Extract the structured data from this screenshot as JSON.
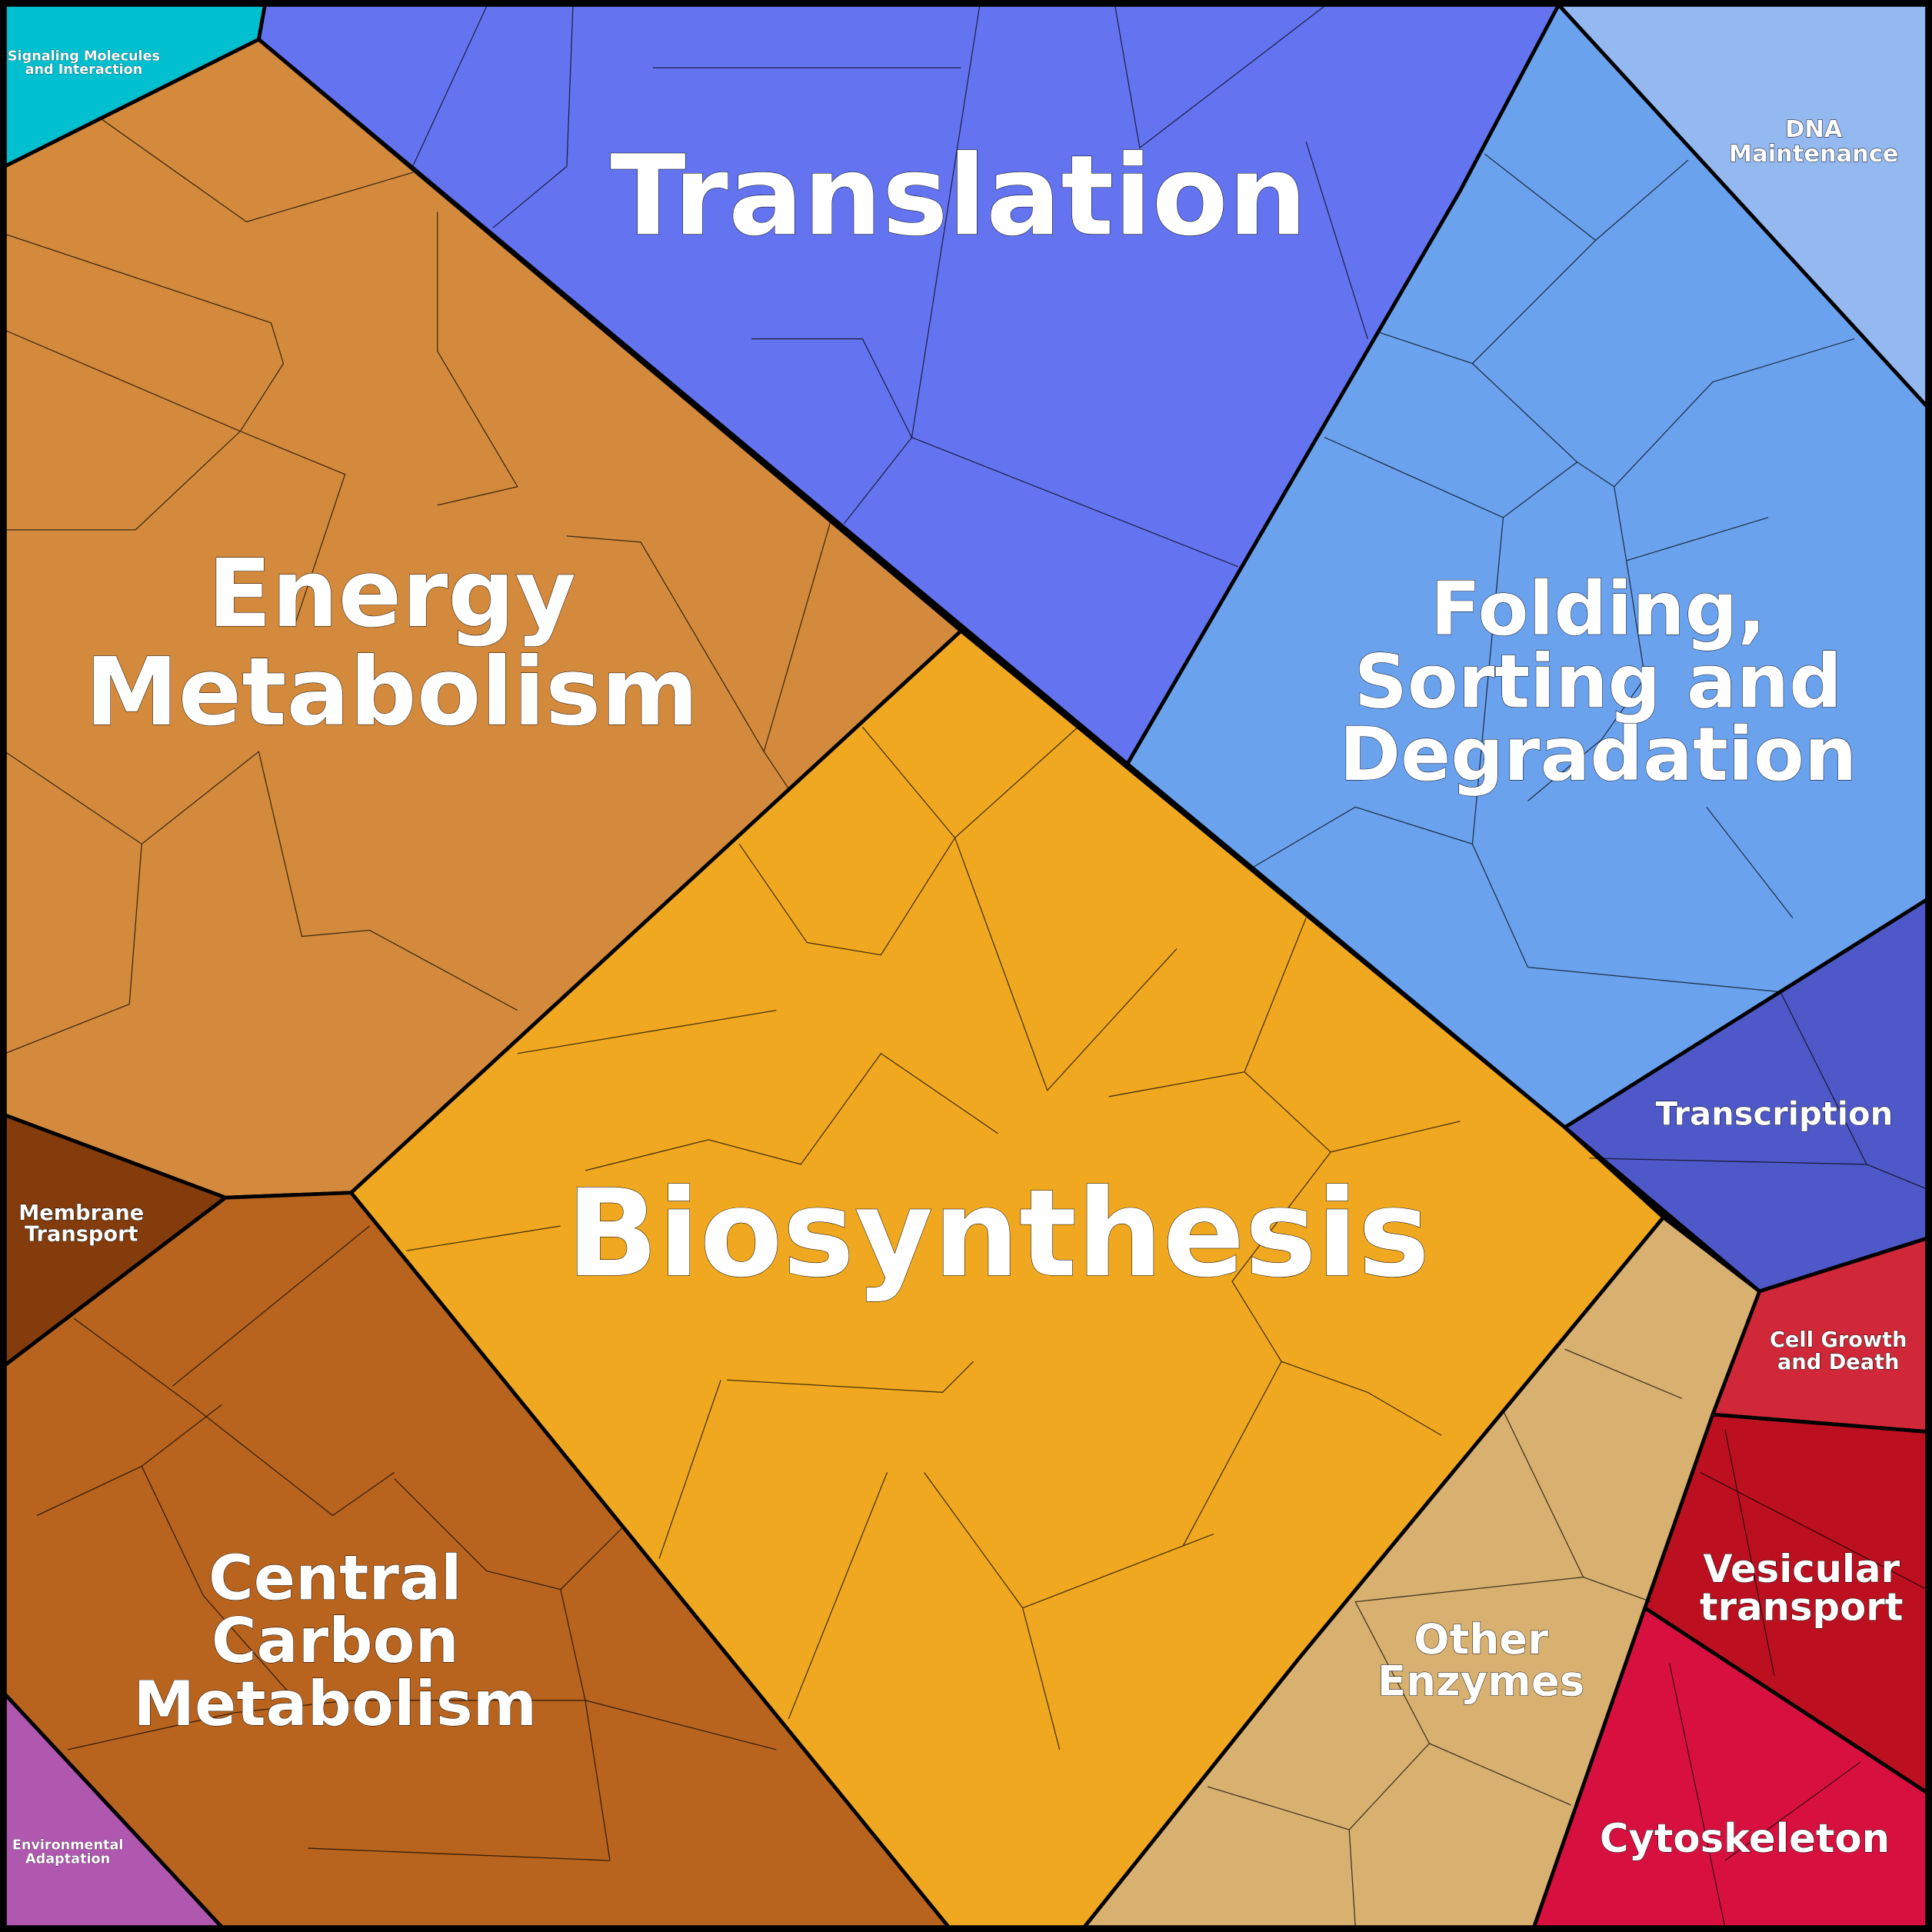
{
  "regions": [
    {
      "label": [
        "Translation"
      ]
    },
    {
      "label": [
        "Energy",
        "Metabolism"
      ]
    },
    {
      "label": [
        "Biosynthesis"
      ]
    },
    {
      "label": [
        "Folding,",
        "Sorting and",
        "Degradation"
      ]
    },
    {
      "label": [
        "Central",
        "Carbon",
        "Metabolism"
      ]
    },
    {
      "label": [
        "Other",
        "Enzymes"
      ]
    },
    {
      "label": [
        "Vesicular",
        "transport"
      ]
    },
    {
      "label": [
        "Cytoskeleton"
      ]
    },
    {
      "label": [
        "Transcription"
      ]
    },
    {
      "label": [
        "Cell Growth",
        "and Death"
      ]
    },
    {
      "label": [
        "DNA",
        "Maintenance"
      ]
    },
    {
      "label": [
        "Membrane",
        "Transport"
      ]
    },
    {
      "label": [
        "Signaling Molecules",
        "and Interaction"
      ]
    },
    {
      "label": [
        "Environmental",
        "Adaptation"
      ]
    }
  ]
}
